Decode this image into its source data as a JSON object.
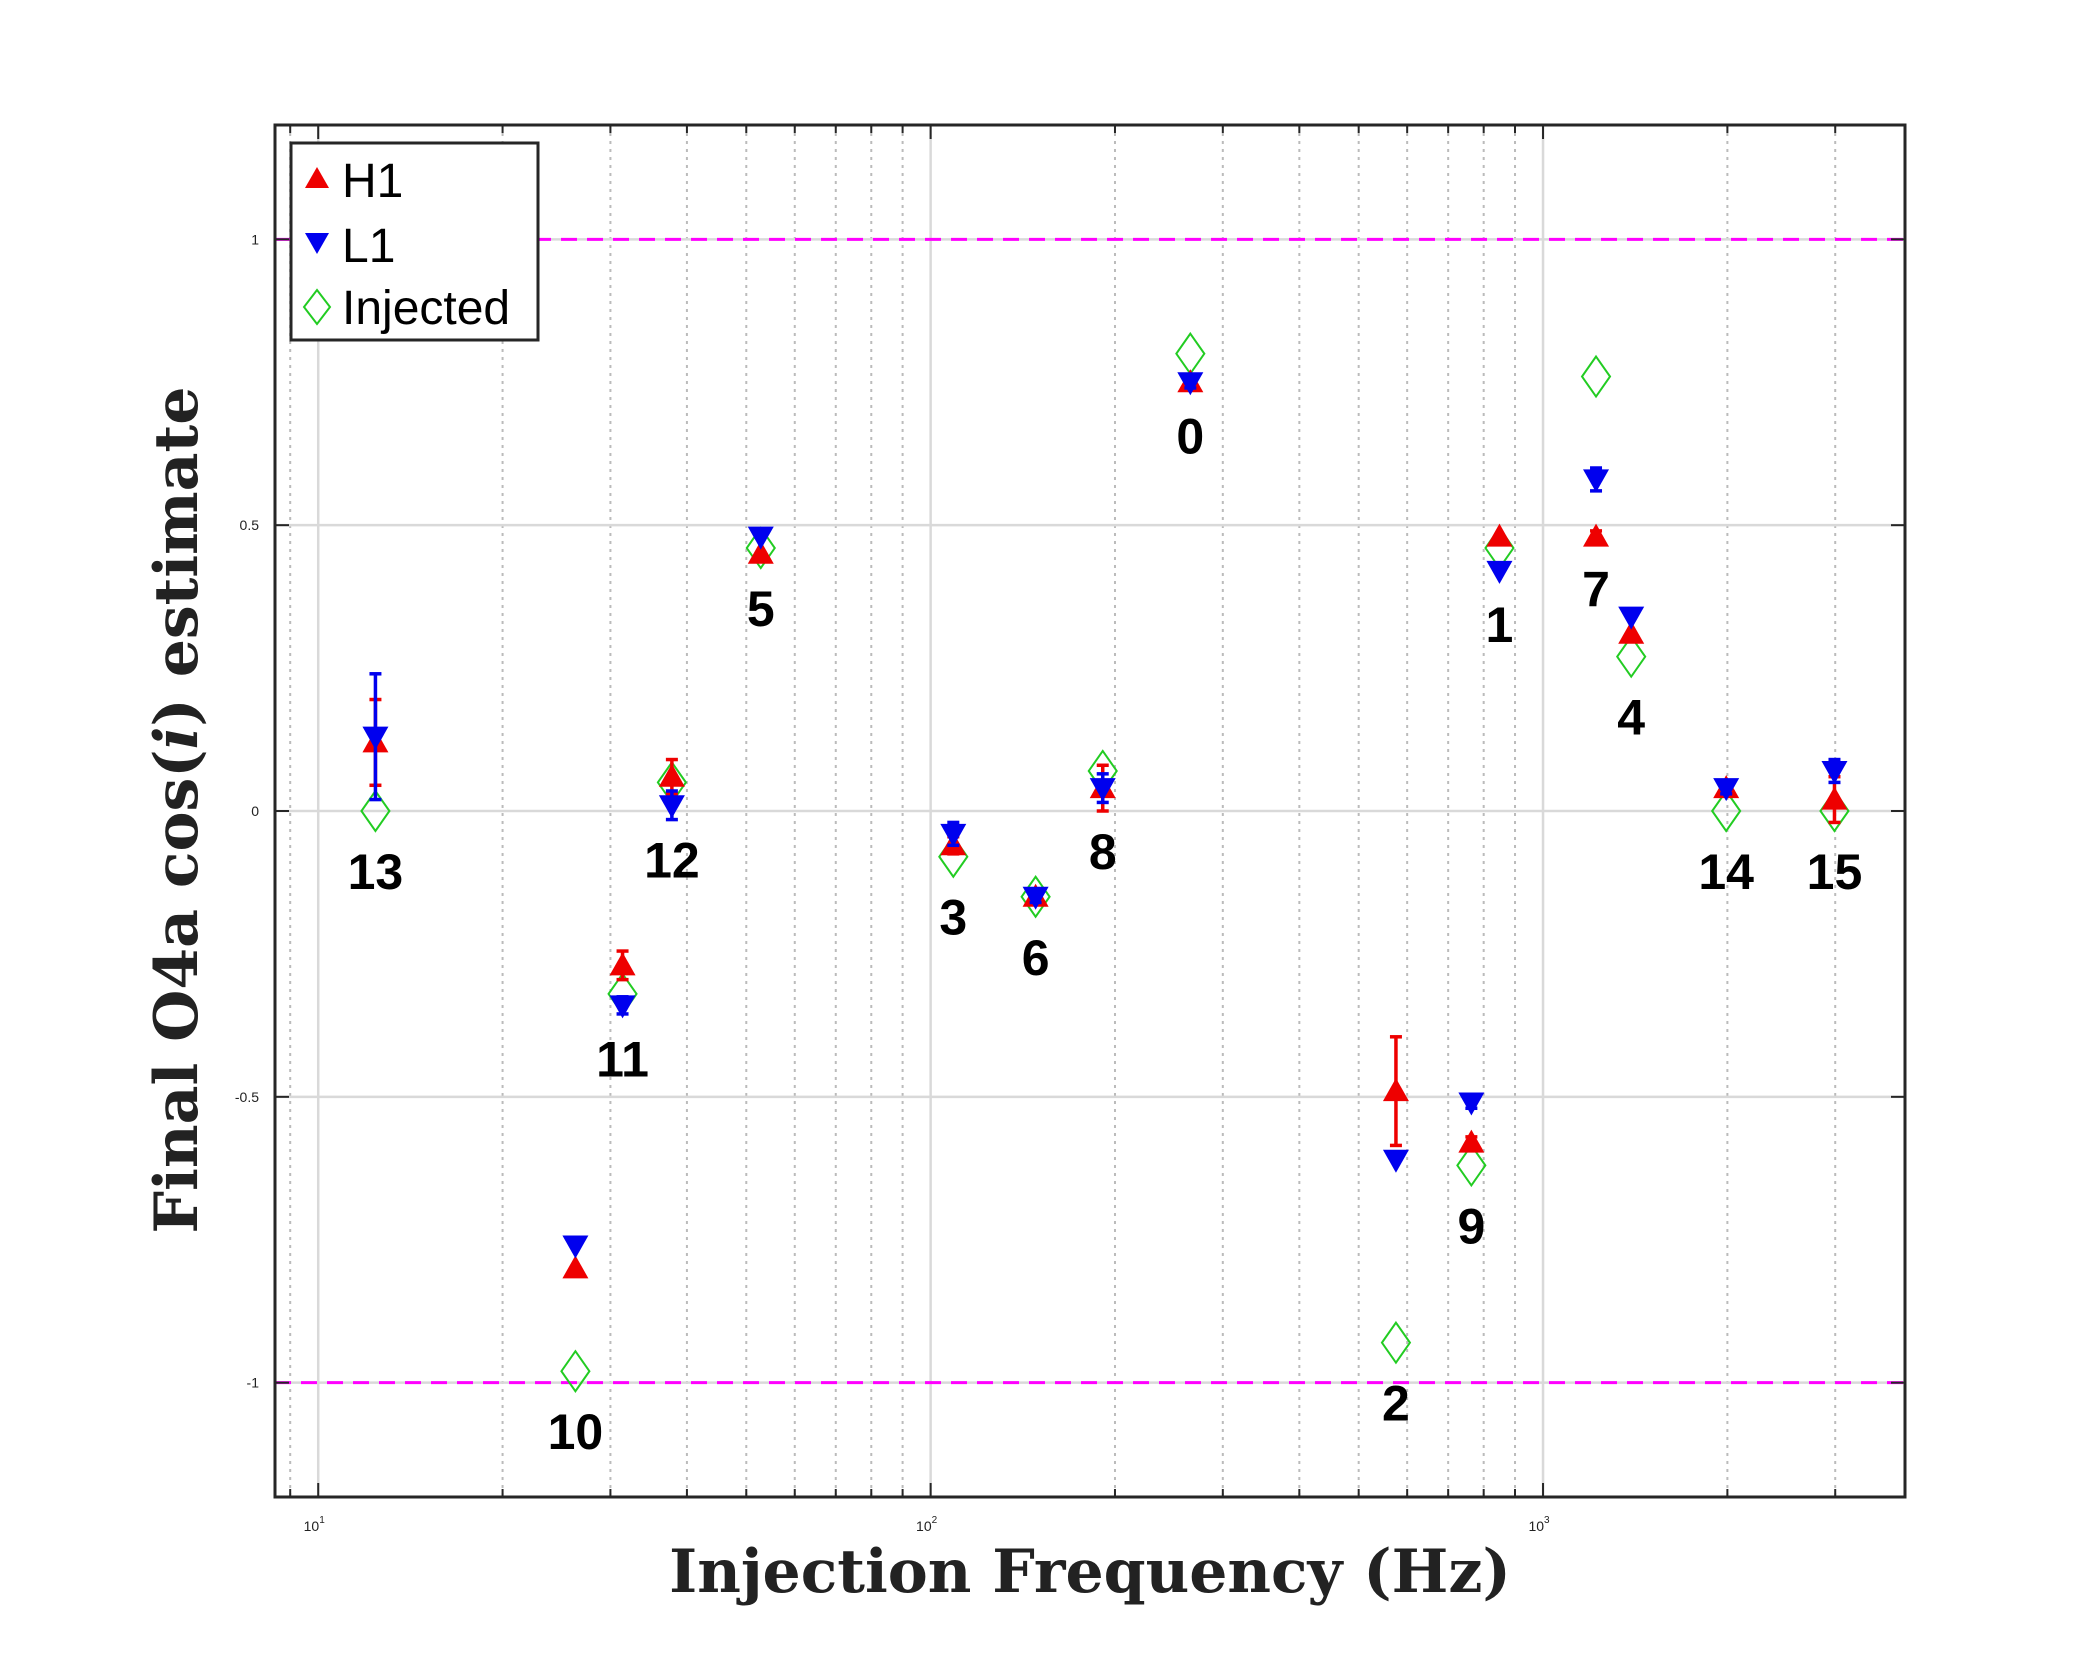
{
  "chart_data": {
    "type": "scatter",
    "xscale": "log",
    "xlabel": "Injection Frequency (Hz)",
    "ylabel_parts": [
      "Final O4a cos(",
      "i",
      ") estimate"
    ],
    "xlim": [
      8.5,
      3900
    ],
    "ylim": [
      -1.2,
      1.2
    ],
    "xticks": [
      {
        "value": 10,
        "base": "10",
        "exp": "1"
      },
      {
        "value": 100,
        "base": "10",
        "exp": "2"
      },
      {
        "value": 1000,
        "base": "10",
        "exp": "3"
      }
    ],
    "yticks": [
      {
        "value": -1,
        "label": "-1"
      },
      {
        "value": -0.5,
        "label": "-0.5"
      },
      {
        "value": 0,
        "label": "0"
      },
      {
        "value": 0.5,
        "label": "0.5"
      },
      {
        "value": 1,
        "label": "1"
      }
    ],
    "reference_lines": [
      {
        "y": 1,
        "color": "#ff00ff"
      },
      {
        "y": -1,
        "color": "#ff00ff"
      }
    ],
    "legend": {
      "position": "top-left",
      "entries": [
        {
          "label": "H1",
          "marker": "triangle-up",
          "color": "#ee0000"
        },
        {
          "label": "L1",
          "marker": "triangle-down",
          "color": "#0000ee"
        },
        {
          "label": "Injected",
          "marker": "diamond-open",
          "color": "#22cc22"
        }
      ]
    },
    "colors": {
      "h1": "#ee0000",
      "l1": "#0000ee",
      "injected": "#22cc22",
      "grid": "#d9d9d9",
      "minor_grid": "#bbbbbb",
      "ref": "#ff00ff"
    },
    "pulsars": [
      {
        "label": "13",
        "freq": 12.4,
        "h1": 0.12,
        "h1_err": 0.075,
        "l1": 0.13,
        "l1_err": 0.11,
        "inj": 0.0
      },
      {
        "label": "10",
        "freq": 26.3,
        "h1": -0.8,
        "h1_err": 0.0,
        "l1": -0.76,
        "l1_err": 0.0,
        "inj": -0.98
      },
      {
        "label": "11",
        "freq": 31.4,
        "h1": -0.27,
        "h1_err": 0.025,
        "l1": -0.34,
        "l1_err": 0.015,
        "inj": -0.32
      },
      {
        "label": "12",
        "freq": 37.8,
        "h1": 0.06,
        "h1_err": 0.03,
        "l1": 0.01,
        "l1_err": 0.025,
        "inj": 0.05
      },
      {
        "label": "5",
        "freq": 52.8,
        "h1": 0.45,
        "h1_err": 0.0,
        "l1": 0.48,
        "l1_err": 0.0,
        "inj": 0.46
      },
      {
        "label": "3",
        "freq": 108.9,
        "h1": -0.06,
        "h1_err": 0.015,
        "l1": -0.04,
        "l1_err": 0.02,
        "inj": -0.08
      },
      {
        "label": "6",
        "freq": 148.4,
        "h1": -0.15,
        "h1_err": 0.01,
        "l1": -0.15,
        "l1_err": 0.01,
        "inj": -0.15
      },
      {
        "label": "8",
        "freq": 191.0,
        "h1": 0.04,
        "h1_err": 0.04,
        "l1": 0.04,
        "l1_err": 0.025,
        "inj": 0.07
      },
      {
        "label": "0",
        "freq": 265.5,
        "h1": 0.75,
        "h1_err": 0.01,
        "l1": 0.75,
        "l1_err": 0.01,
        "inj": 0.8
      },
      {
        "label": "2",
        "freq": 575.2,
        "h1": -0.49,
        "h1_err": 0.095,
        "l1": -0.61,
        "l1_err": 0.0,
        "inj": -0.93
      },
      {
        "label": "9",
        "freq": 763.8,
        "h1": -0.58,
        "h1_err": 0.01,
        "l1": -0.51,
        "l1_err": 0.01,
        "inj": -0.62
      },
      {
        "label": "1",
        "freq": 848.9,
        "h1": 0.48,
        "h1_err": 0.0,
        "l1": 0.42,
        "l1_err": 0.0,
        "inj": 0.46
      },
      {
        "label": "7",
        "freq": 1220.5,
        "h1": 0.48,
        "h1_err": 0.01,
        "l1": 0.58,
        "l1_err": 0.02,
        "inj": 0.76
      },
      {
        "label": "4",
        "freq": 1393.1,
        "h1": 0.31,
        "h1_err": 0.0,
        "l1": 0.34,
        "l1_err": 0.0,
        "inj": 0.27
      },
      {
        "label": "14",
        "freq": 1991.0,
        "h1": 0.04,
        "h1_err": 0.01,
        "l1": 0.04,
        "l1_err": 0.01,
        "inj": 0.0
      },
      {
        "label": "15",
        "freq": 2991.6,
        "h1": 0.02,
        "h1_err": 0.04,
        "l1": 0.07,
        "l1_err": 0.02,
        "inj": 0.0
      }
    ]
  }
}
